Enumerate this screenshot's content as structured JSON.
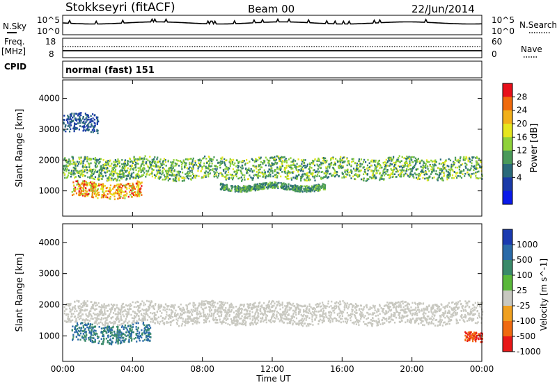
{
  "header": {
    "station": "Stokkseyri (fitACF)",
    "beam": "Beam 00",
    "date": "22/Jun/2014"
  },
  "noise_panel": {
    "left_label": "N.Sky",
    "right_label": "N.Search",
    "left_ticks": [
      "10^5",
      "10^0"
    ],
    "right_ticks": [
      "10^5",
      "10^0"
    ]
  },
  "freq_panel": {
    "label_line1": "Freq.",
    "label_line2": "[MHz]",
    "right_label": "Nave",
    "left_ticks": [
      "18",
      "8"
    ],
    "right_ticks": [
      "60",
      "0"
    ]
  },
  "cpid": {
    "label": "CPID",
    "value": "normal (fast) 151"
  },
  "power_panel": {
    "ylabel": "Slant Range [km]",
    "colorbar_label": "Power [dB]",
    "colorbar_ticks": [
      "28",
      "24",
      "20",
      "16",
      "12",
      "8",
      "4"
    ],
    "colorbar_colors": [
      "#e8101a",
      "#f06a0c",
      "#f2b01a",
      "#e6e61e",
      "#8fd23a",
      "#4a9a5a",
      "#2a6a7a",
      "#1a3aa8",
      "#0a1aea"
    ]
  },
  "velocity_panel": {
    "ylabel": "Slant Range [km]",
    "colorbar_label": "Velocity [m s^-1]",
    "colorbar_ticks": [
      "1000",
      "500",
      "100",
      "25",
      "-25",
      "-100",
      "-500",
      "-1000"
    ],
    "colorbar_colors": [
      "#1a3ab0",
      "#2a6aa8",
      "#3a8a6a",
      "#5ab83a",
      "#c8c8c0",
      "#f0a020",
      "#f06a10",
      "#e81818"
    ]
  },
  "xaxis": {
    "label": "Time UT",
    "ticks": [
      "00:00",
      "04:00",
      "08:00",
      "12:00",
      "16:00",
      "20:00",
      "00:00"
    ]
  },
  "chart_data": [
    {
      "type": "heatmap",
      "title": "Power",
      "ylabel": "Slant Range [km]",
      "xlabel": "Time UT",
      "ylim": [
        180,
        4600
      ],
      "yticks": [
        1000,
        2000,
        3000,
        4000
      ],
      "x_ticks": [
        "00:00",
        "04:00",
        "08:00",
        "12:00",
        "16:00",
        "20:00",
        "00:00"
      ],
      "colorbar": {
        "label": "Power [dB]",
        "ticks": [
          4,
          8,
          12,
          16,
          20,
          24,
          28
        ]
      },
      "features": [
        {
          "name": "main echo band",
          "hours": [
            0,
            24
          ],
          "range_km": [
            1400,
            2100
          ],
          "power_db": [
            8,
            20
          ]
        },
        {
          "name": "strong low band",
          "hours": [
            0.5,
            4.5
          ],
          "range_km": [
            800,
            1300
          ],
          "power_db": [
            16,
            30
          ]
        },
        {
          "name": "upper band",
          "hours": [
            0,
            2
          ],
          "range_km": [
            2900,
            3500
          ],
          "power_db": [
            4,
            10
          ]
        },
        {
          "name": "mid band",
          "hours": [
            9,
            15
          ],
          "range_km": [
            1050,
            1250
          ],
          "power_db": [
            8,
            16
          ]
        }
      ]
    },
    {
      "type": "heatmap",
      "title": "Velocity",
      "ylabel": "Slant Range [km]",
      "xlabel": "Time UT",
      "ylim": [
        180,
        4600
      ],
      "yticks": [
        1000,
        2000,
        3000,
        4000
      ],
      "x_ticks": [
        "00:00",
        "04:00",
        "08:00",
        "12:00",
        "16:00",
        "20:00",
        "00:00"
      ],
      "colorbar": {
        "label": "Velocity [m s^-1]",
        "ticks": [
          1000,
          500,
          100,
          25,
          -25,
          -100,
          -500,
          -1000
        ]
      },
      "features": [
        {
          "name": "ground scatter band",
          "hours": [
            0,
            24
          ],
          "range_km": [
            1400,
            2100
          ],
          "velocity": [
            -25,
            25
          ]
        },
        {
          "name": "positive velocity region",
          "hours": [
            0.5,
            5
          ],
          "range_km": [
            800,
            1400
          ],
          "velocity": [
            100,
            500
          ]
        },
        {
          "name": "negative velocity patch",
          "hours": [
            23,
            24
          ],
          "range_km": [
            800,
            1100
          ],
          "velocity": [
            -500,
            -100
          ]
        }
      ]
    }
  ]
}
